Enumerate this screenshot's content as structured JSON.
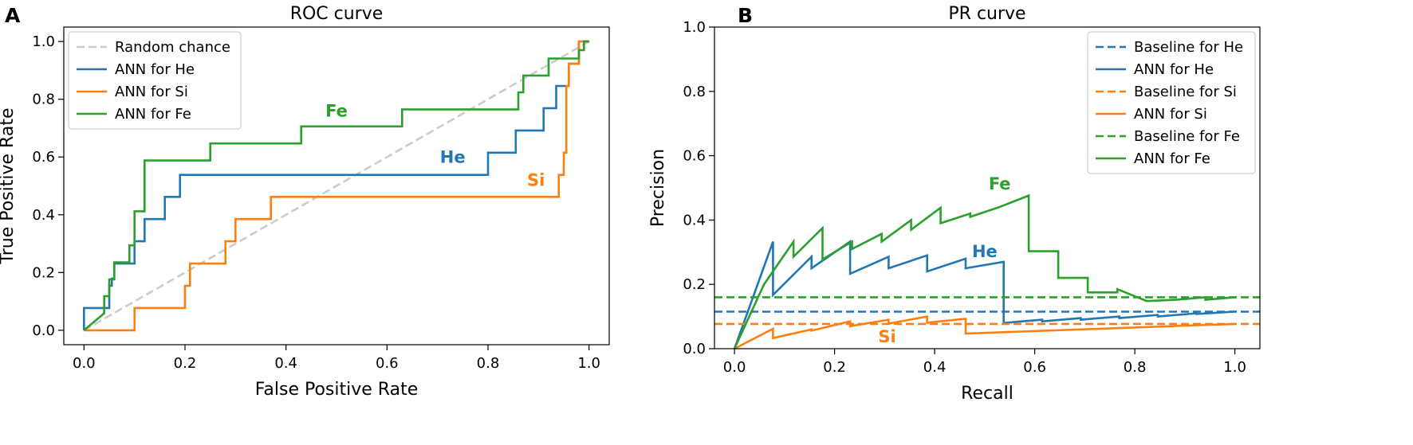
{
  "panels": {
    "a": "A",
    "b": "B"
  },
  "chart_data": [
    {
      "type": "line",
      "title": "ROC curve",
      "xlabel": "False Positive Rate",
      "ylabel": "True Positive Rate",
      "xlim": [
        -0.04,
        1.04
      ],
      "ylim": [
        -0.05,
        1.05
      ],
      "xticks": [
        0.0,
        0.2,
        0.4,
        0.6,
        0.8,
        1.0
      ],
      "xtick_labels": [
        "0.0",
        "0.2",
        "0.4",
        "0.6",
        "0.8",
        "1.0"
      ],
      "yticks": [
        0.0,
        0.2,
        0.4,
        0.6,
        0.8,
        1.0
      ],
      "ytick_labels": [
        "0.0",
        "0.2",
        "0.4",
        "0.6",
        "0.8",
        "1.0"
      ],
      "legend_position": "top-left",
      "series": [
        {
          "name": "Random chance",
          "color": "#cccccc",
          "dash": "dashed",
          "x": [
            0,
            1
          ],
          "y": [
            0,
            1
          ]
        },
        {
          "name": "ANN for He",
          "color": "#1f77b4",
          "dash": "solid",
          "x": [
            0,
            0,
            0.05,
            0.05,
            0.055,
            0.055,
            0.06,
            0.06,
            0.1,
            0.1,
            0.12,
            0.12,
            0.16,
            0.16,
            0.19,
            0.19,
            0.8,
            0.8,
            0.855,
            0.855,
            0.91,
            0.91,
            0.935,
            0.935,
            0.96,
            0.96,
            0.98,
            0.98,
            1.0,
            1.0
          ],
          "y": [
            0,
            0.077,
            0.077,
            0.154,
            0.154,
            0.179,
            0.179,
            0.231,
            0.231,
            0.308,
            0.308,
            0.385,
            0.385,
            0.462,
            0.462,
            0.538,
            0.538,
            0.615,
            0.615,
            0.692,
            0.692,
            0.769,
            0.769,
            0.846,
            0.846,
            0.923,
            0.923,
            1.0,
            1.0,
            1.0
          ]
        },
        {
          "name": "ANN for Si",
          "color": "#ff7f0e",
          "dash": "solid",
          "x": [
            0,
            0.1,
            0.1,
            0.2,
            0.2,
            0.21,
            0.21,
            0.28,
            0.28,
            0.3,
            0.3,
            0.37,
            0.37,
            0.94,
            0.94,
            0.95,
            0.95,
            0.955,
            0.955,
            0.96,
            0.96,
            0.98,
            0.98,
            1.0,
            1.0
          ],
          "y": [
            0,
            0,
            0.077,
            0.077,
            0.154,
            0.154,
            0.231,
            0.231,
            0.308,
            0.308,
            0.385,
            0.385,
            0.462,
            0.462,
            0.538,
            0.538,
            0.615,
            0.615,
            0.846,
            0.846,
            0.923,
            0.923,
            1.0,
            1.0,
            1.0
          ]
        },
        {
          "name": "ANN for Fe",
          "color": "#2ca02c",
          "dash": "solid",
          "x": [
            0,
            0.04,
            0.04,
            0.05,
            0.05,
            0.06,
            0.06,
            0.09,
            0.09,
            0.1,
            0.1,
            0.12,
            0.12,
            0.25,
            0.25,
            0.43,
            0.43,
            0.63,
            0.63,
            0.86,
            0.86,
            0.87,
            0.87,
            0.88,
            0.88,
            0.92,
            0.92,
            0.98,
            0.98,
            0.99,
            0.99,
            1.0,
            1.0
          ],
          "y": [
            0,
            0.059,
            0.118,
            0.118,
            0.176,
            0.176,
            0.235,
            0.235,
            0.294,
            0.294,
            0.412,
            0.412,
            0.588,
            0.588,
            0.647,
            0.647,
            0.706,
            0.706,
            0.765,
            0.765,
            0.824,
            0.824,
            0.882,
            0.882,
            0.882,
            0.882,
            0.941,
            0.941,
            0.97,
            0.97,
            1.0,
            1.0,
            1.0
          ]
        }
      ],
      "annotations": [
        {
          "text": "Fe",
          "x": 0.5,
          "y": 0.74,
          "color": "#2ca02c"
        },
        {
          "text": "He",
          "x": 0.73,
          "y": 0.58,
          "color": "#1f77b4"
        },
        {
          "text": "Si",
          "x": 0.895,
          "y": 0.5,
          "color": "#ff7f0e"
        }
      ]
    },
    {
      "type": "line",
      "title": "PR curve",
      "xlabel": "Recall",
      "ylabel": "Precision",
      "xlim": [
        -0.04,
        1.05
      ],
      "ylim": [
        0,
        1
      ],
      "xticks": [
        0.0,
        0.2,
        0.4,
        0.6,
        0.8,
        1.0
      ],
      "xtick_labels": [
        "0.0",
        "0.2",
        "0.4",
        "0.6",
        "0.8",
        "1.0"
      ],
      "yticks": [
        0.0,
        0.2,
        0.4,
        0.6,
        0.8,
        1.0
      ],
      "ytick_labels": [
        "0.0",
        "0.2",
        "0.4",
        "0.6",
        "0.8",
        "1.0"
      ],
      "legend_position": "top-right",
      "series": [
        {
          "name": "Baseline for He",
          "color": "#1f77b4",
          "dash": "dashed",
          "x": [
            -0.04,
            1.05
          ],
          "y": [
            0.115,
            0.115
          ]
        },
        {
          "name": "ANN for He",
          "color": "#1f77b4",
          "dash": "solid",
          "x": [
            0,
            0.077,
            0.077,
            0.154,
            0.154,
            0.231,
            0.231,
            0.308,
            0.308,
            0.385,
            0.385,
            0.462,
            0.462,
            0.538,
            0.538,
            0.615,
            0.615,
            0.692,
            0.692,
            0.769,
            0.769,
            0.846,
            0.846,
            0.923,
            0.923,
            1.0
          ],
          "y": [
            0,
            0.333,
            0.167,
            0.286,
            0.25,
            0.333,
            0.233,
            0.286,
            0.25,
            0.29,
            0.24,
            0.28,
            0.25,
            0.27,
            0.08,
            0.09,
            0.085,
            0.095,
            0.09,
            0.1,
            0.095,
            0.105,
            0.1,
            0.11,
            0.108,
            0.115
          ]
        },
        {
          "name": "Baseline for Si",
          "color": "#ff7f0e",
          "dash": "dashed",
          "x": [
            -0.04,
            1.05
          ],
          "y": [
            0.077,
            0.077
          ]
        },
        {
          "name": "ANN for Si",
          "color": "#ff7f0e",
          "dash": "solid",
          "x": [
            0,
            0.077,
            0.077,
            0.154,
            0.154,
            0.231,
            0.231,
            0.308,
            0.308,
            0.385,
            0.385,
            0.462,
            0.462,
            1.0
          ],
          "y": [
            0,
            0.062,
            0.033,
            0.06,
            0.056,
            0.085,
            0.07,
            0.09,
            0.078,
            0.1,
            0.081,
            0.093,
            0.047,
            0.077
          ]
        },
        {
          "name": "Baseline for Fe",
          "color": "#2ca02c",
          "dash": "dashed",
          "x": [
            -0.04,
            1.05
          ],
          "y": [
            0.16,
            0.16
          ]
        },
        {
          "name": "ANN for Fe",
          "color": "#2ca02c",
          "dash": "solid",
          "x": [
            0,
            0.059,
            0.118,
            0.118,
            0.176,
            0.176,
            0.235,
            0.235,
            0.294,
            0.294,
            0.353,
            0.353,
            0.412,
            0.412,
            0.471,
            0.471,
            0.529,
            0.588,
            0.588,
            0.647,
            0.647,
            0.706,
            0.706,
            0.765,
            0.765,
            0.824,
            0.824,
            0.882,
            0.941,
            0.941,
            1.0
          ],
          "y": [
            0,
            0.2,
            0.333,
            0.286,
            0.375,
            0.278,
            0.333,
            0.31,
            0.357,
            0.333,
            0.4,
            0.37,
            0.438,
            0.39,
            0.42,
            0.41,
            0.44,
            0.476,
            0.303,
            0.303,
            0.22,
            0.22,
            0.175,
            0.175,
            0.185,
            0.148,
            0.148,
            0.152,
            0.16,
            0.152,
            0.16
          ]
        }
      ],
      "annotations": [
        {
          "text": "Fe",
          "x": 0.53,
          "y": 0.495,
          "color": "#2ca02c"
        },
        {
          "text": "He",
          "x": 0.5,
          "y": 0.285,
          "color": "#1f77b4"
        },
        {
          "text": "Si",
          "x": 0.305,
          "y": 0.02,
          "color": "#ff7f0e"
        }
      ]
    }
  ]
}
